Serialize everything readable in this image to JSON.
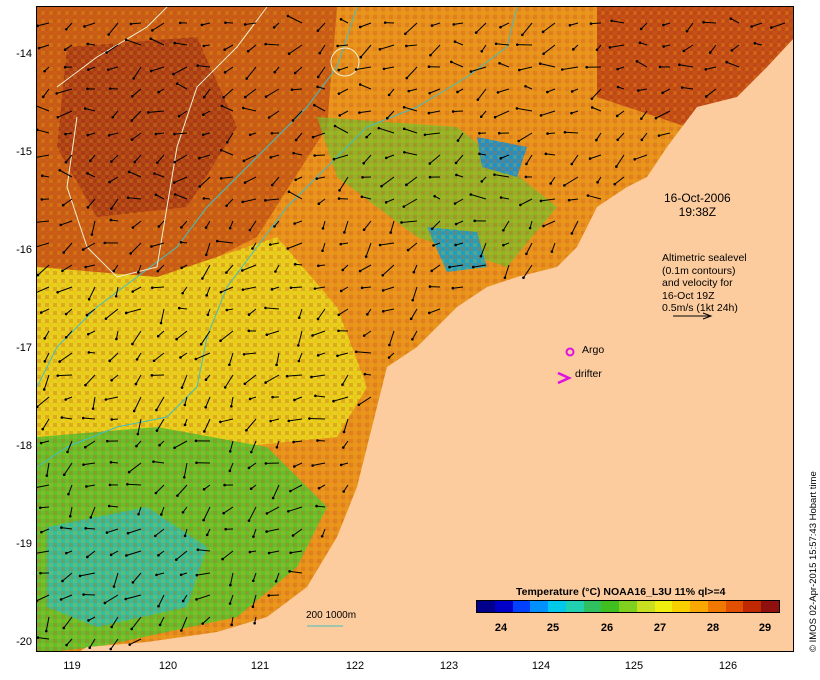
{
  "map": {
    "date_line1": "16-Oct-2006",
    "date_line2": "19:38Z",
    "velocity_legend": [
      "Altimetric sealevel",
      "(0.1m contours)",
      "and velocity for",
      "16-Oct 19Z",
      "0.5m/s (1kt 24h)"
    ],
    "argo_label": "Argo",
    "drifter_label": "drifter",
    "contour_legend_label": "200  1000m",
    "credit": "© IMOS 02-Apr-2015 15:57:43 Hobart time",
    "lat_ticks": [
      "-14",
      "-15",
      "-16",
      "-17",
      "-18",
      "-19",
      "-20"
    ],
    "lon_ticks": [
      "119",
      "120",
      "121",
      "122",
      "123",
      "124",
      "125",
      "126"
    ],
    "colors": {
      "land": "#fccc9e",
      "argo_marker": "#e010e0",
      "contour_line": "#40c0c0",
      "sealevel_contour": "#f0f0d0"
    }
  },
  "colorbar": {
    "title": "Temperature (°C) NOAA16_L3U 11% ql>=4",
    "ticks": [
      "24",
      "25",
      "26",
      "27",
      "28",
      "29"
    ],
    "colors": [
      "#00008c",
      "#0000c8",
      "#0040ff",
      "#0090ff",
      "#00c8e8",
      "#20d0b0",
      "#30c060",
      "#40c020",
      "#80d020",
      "#c8e020",
      "#f0f010",
      "#f8d000",
      "#f8a800",
      "#f07800",
      "#e05000",
      "#c02800",
      "#901010"
    ]
  }
}
